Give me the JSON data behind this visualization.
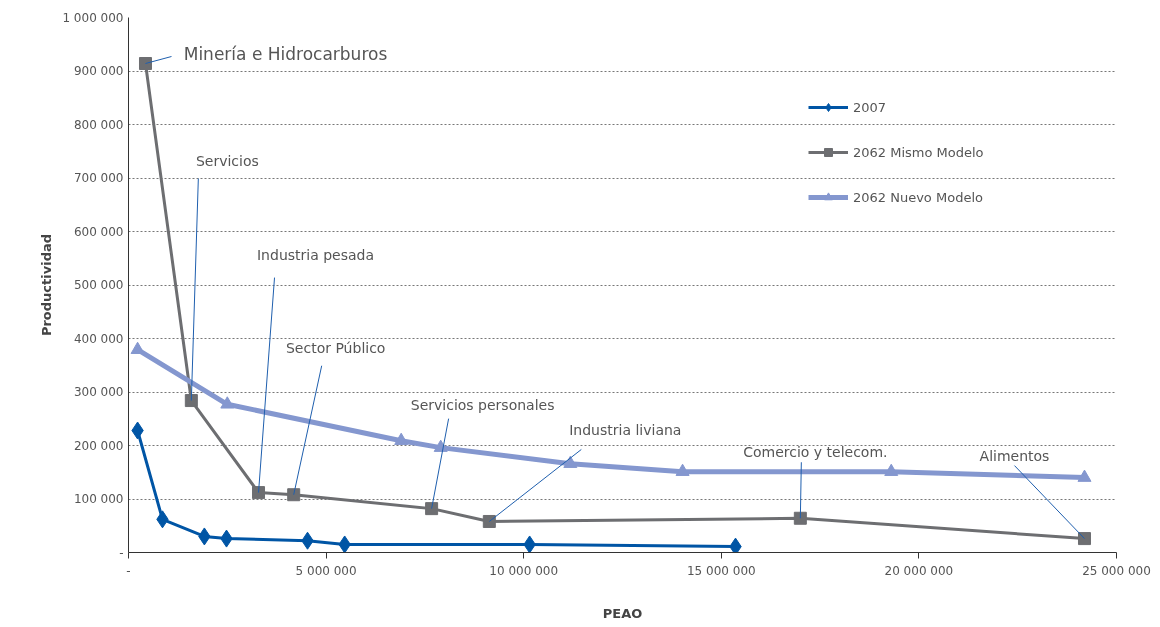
{
  "chart_data": {
    "type": "line",
    "xlabel": "PEAO",
    "ylabel": "Productividad",
    "xlim": [
      0,
      25000000
    ],
    "xticks": [
      {
        "value": 0,
        "label": "-"
      },
      {
        "value": 5000000,
        "label": "5 000 000"
      },
      {
        "value": 10000000,
        "label": "10 000 000"
      },
      {
        "value": 15000000,
        "label": "15 000 000"
      },
      {
        "value": 20000000,
        "label": "20 000 000"
      },
      {
        "value": 25000000,
        "label": "25 000 000"
      }
    ],
    "ylim": [
      0,
      1000000
    ],
    "yticks": [
      {
        "value": 0,
        "label": "-"
      },
      {
        "value": 100000,
        "label": "100 000"
      },
      {
        "value": 200000,
        "label": "200 000"
      },
      {
        "value": 300000,
        "label": "300 000"
      },
      {
        "value": 400000,
        "label": "400 000"
      },
      {
        "value": 500000,
        "label": "500 000"
      },
      {
        "value": 600000,
        "label": "600 000"
      },
      {
        "value": 700000,
        "label": "700 000"
      },
      {
        "value": 800000,
        "label": "800 000"
      },
      {
        "value": 900000,
        "label": "900 000"
      },
      {
        "value": 1000000,
        "label": "1 000 000"
      }
    ],
    "grid": "y",
    "legend": "top right",
    "line_style": "solid",
    "series": [
      {
        "name": "2007",
        "color": "#0055a5",
        "marker": "diamond",
        "x": [
          230000,
          860000,
          1920000,
          2480000,
          4530000,
          5470000,
          10150000,
          15360000
        ],
        "values": [
          228000,
          62000,
          30000,
          26000,
          22000,
          15000,
          15000,
          11000
        ]
      },
      {
        "name": "2062 Mismo Modelo",
        "color": "#6d6e71",
        "marker": "square",
        "x": [
          430000,
          1590000,
          3290000,
          4180000,
          7670000,
          9130000,
          17000000,
          24190000
        ],
        "values": [
          914000,
          284000,
          112000,
          108000,
          82000,
          58000,
          64000,
          26000
        ]
      },
      {
        "name": "2062 Nuevo Modelo",
        "color": "#8497cf",
        "marker": "triangle",
        "x": [
          230000,
          2500000,
          6900000,
          7900000,
          11180000,
          14020000,
          19300000,
          24190000
        ],
        "values": [
          379000,
          277000,
          209000,
          196000,
          166000,
          151000,
          151000,
          140000
        ]
      }
    ],
    "annotations": [
      {
        "text": "Minería e Hidrocarburos",
        "x": 430000,
        "y": 914000
      },
      {
        "text": "Servicios",
        "x": 1590000,
        "y": 284000
      },
      {
        "text": "Industria pesada",
        "x": 3290000,
        "y": 112000
      },
      {
        "text": "Sector Público",
        "x": 4180000,
        "y": 108000
      },
      {
        "text": "Servicios personales",
        "x": 7670000,
        "y": 82000
      },
      {
        "text": "Industria liviana",
        "x": 9130000,
        "y": 58000
      },
      {
        "text": "Comercio y telecom.",
        "x": 17000000,
        "y": 64000
      },
      {
        "text": "Alimentos",
        "x": 24190000,
        "y": 26000
      }
    ]
  }
}
